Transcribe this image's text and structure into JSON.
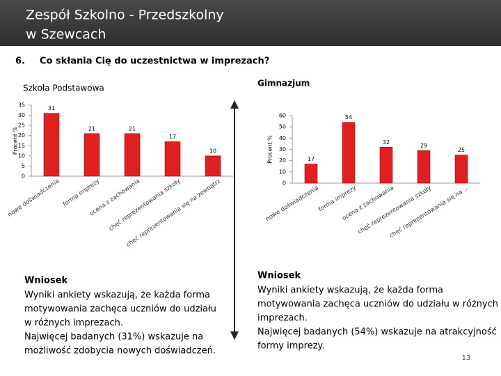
{
  "slide": {
    "title_lines": [
      "Zespół Szkolno - Przedszkolny",
      "w Szewcach"
    ],
    "number": "6.",
    "question": "Co skłania Cię do uczestnictwa w imprezach?",
    "page": "13"
  },
  "conclusions": [
    {
      "heading": "Wniosek",
      "lines": [
        "Wyniki ankiety wskazują, że każda forma",
        "motywowania zachęca uczniów do udziału",
        "w różnych imprezach.",
        "Najwięcej badanych (31%) wskazuje na",
        "możliwość zdobycia nowych doświadczeń."
      ]
    },
    {
      "heading": "Wniosek",
      "lines": [
        "Wyniki ankiety wskazują, że każda forma",
        "motywowania zachęca uczniów do udziału w różnych",
        "imprezach.",
        "Najwięcej badanych (54%) wskazuje na atrakcyjność",
        "formy imprezy."
      ]
    }
  ],
  "chart_data": [
    {
      "type": "bar",
      "title": "Szkoła  Podstawowa",
      "y_label": "Procent %",
      "categories": [
        "nowe doświadczenia",
        "forma imprezy",
        "ocena z zachowania",
        "chęć reprezentowania szkoły",
        "chęć reprezentowania się na zewnątrz"
      ],
      "values": [
        31,
        21,
        21,
        17,
        10
      ],
      "color": "#e02020",
      "ylim": [
        0,
        35
      ],
      "yticks": [
        0,
        5,
        10,
        15,
        20,
        25,
        30,
        35
      ],
      "grid": false
    },
    {
      "type": "bar",
      "title": "Gimnazjum",
      "y_label": "Procent %",
      "categories": [
        "nowe doświadczenia",
        "forma imprezy",
        "ocena z zachowania",
        "chęć reprezentowania szkoły",
        "chęć reprezentowania się na ..."
      ],
      "values": [
        17,
        54,
        32,
        29,
        25
      ],
      "color": "#e02020",
      "ylim": [
        0,
        60
      ],
      "yticks": [
        0,
        10,
        20,
        30,
        40,
        50,
        60
      ],
      "grid": false
    }
  ]
}
